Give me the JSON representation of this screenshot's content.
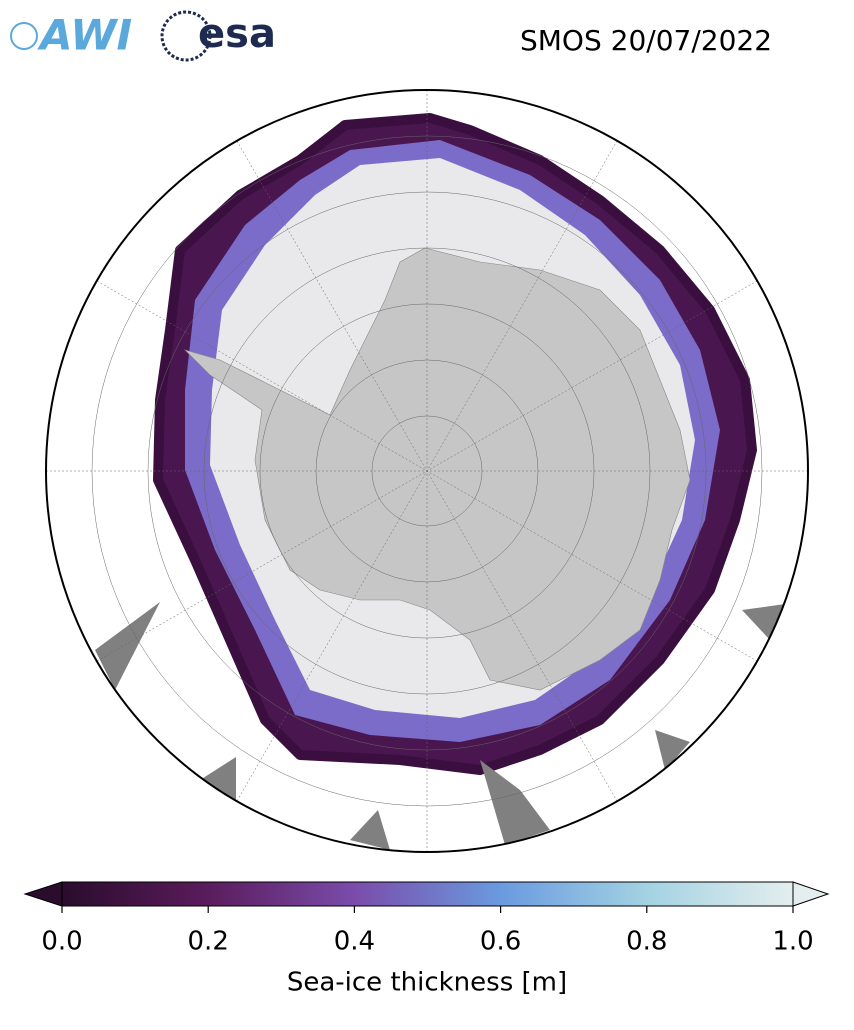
{
  "header": {
    "logos": [
      "AWI",
      "esa"
    ],
    "title": "SMOS 20/07/2022"
  },
  "colorbar": {
    "label": "Sea-ice thickness [m]",
    "lim": [
      0,
      1
    ],
    "ticks": [
      {
        "value": 0,
        "label": "0.0"
      },
      {
        "value": 0.2,
        "label": "0.2"
      },
      {
        "value": 0.4,
        "label": "0.4"
      },
      {
        "value": 0.6,
        "label": "0.6"
      },
      {
        "value": 0.8,
        "label": "0.8"
      },
      {
        "value": 1,
        "label": "1.0"
      }
    ],
    "colors": [
      "#2a0c2c",
      "#5a1c5c",
      "#7a4cab",
      "#6a9ae0",
      "#a3d2e2",
      "#e4eeee"
    ]
  }
}
